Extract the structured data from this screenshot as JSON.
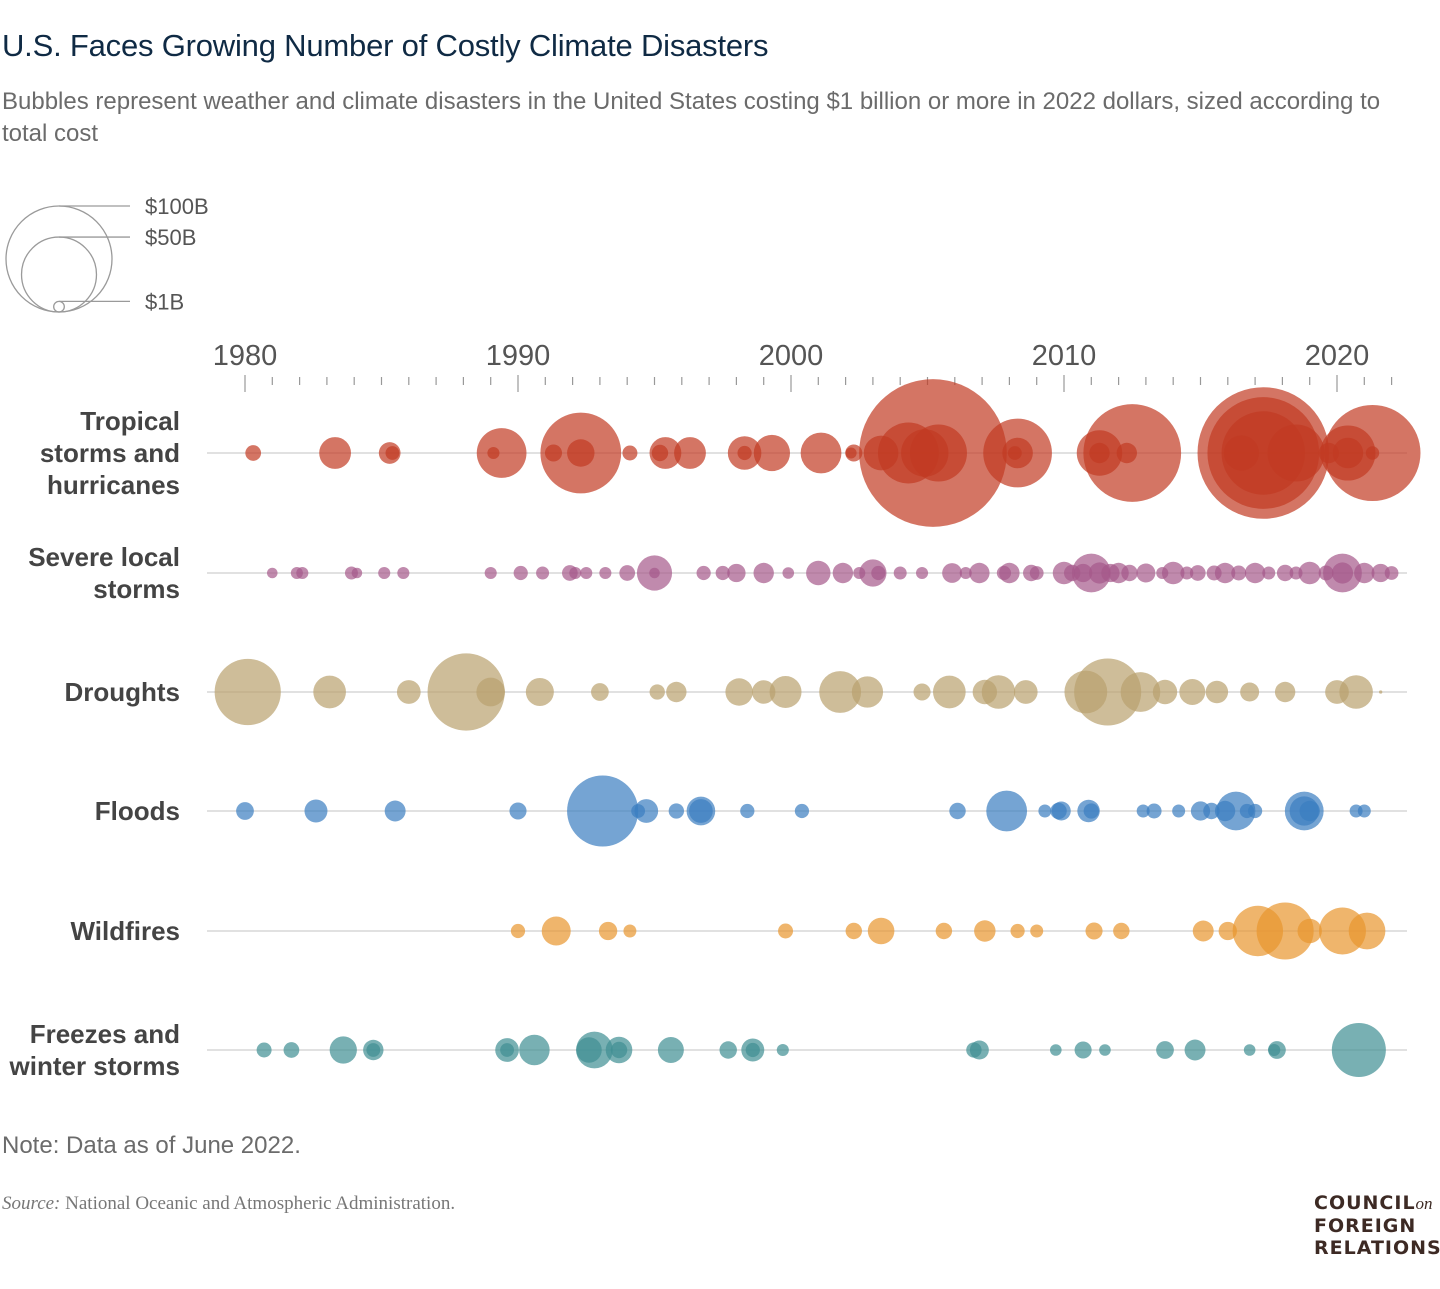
{
  "title": "U.S. Faces Growing Number of Costly Climate Disasters",
  "subtitle": "Bubbles represent weather and climate disasters in the United States costing $1 billion or more in 2022 dollars, sized according to total cost",
  "note": "Note: Data as of June 2022.",
  "source_label": "Source:",
  "source_text": " National Oceanic and Atmospheric Administration.",
  "logo": {
    "line1": "COUNCIL",
    "on": "on",
    "line2": "FOREIGN",
    "line3": "RELATIONS"
  },
  "chart_data": {
    "type": "scatter",
    "title": "U.S. Faces Growing Number of Costly Climate Disasters",
    "size_encoding": "total cost (billions of 2022 dollars)",
    "size_legend": [
      {
        "label": "$100B",
        "value": 100
      },
      {
        "label": "$50B",
        "value": 50
      },
      {
        "label": "$1B",
        "value": 1
      }
    ],
    "x_ticks": [
      "1980",
      "1990",
      "2000",
      "2010",
      "2020"
    ],
    "x_tick_values": [
      1980,
      1990,
      2000,
      2010,
      2020
    ],
    "xlim": [
      1980,
      2022
    ],
    "grid": true,
    "series": [
      {
        "name": "Tropical storms and hurricanes",
        "label_lines": [
          "Tropical",
          "storms and",
          "hurricanes"
        ],
        "color": "#c23b22",
        "points": [
          [
            1980.3,
            2.2
          ],
          [
            1983.3,
            9
          ],
          [
            1985.3,
            4.2
          ],
          [
            1985.4,
            1.7
          ],
          [
            1989.1,
            1.3
          ],
          [
            1989.4,
            22
          ],
          [
            1991.3,
            2.6
          ],
          [
            1992.3,
            58
          ],
          [
            1992.3,
            6.7
          ],
          [
            1994.1,
            2
          ],
          [
            1995.2,
            2.4
          ],
          [
            1995.4,
            9
          ],
          [
            1996.3,
            9
          ],
          [
            1998.3,
            1.8
          ],
          [
            1998.3,
            10
          ],
          [
            1999.3,
            11.7
          ],
          [
            2001.1,
            14.8
          ],
          [
            2002.2,
            1.1
          ],
          [
            2002.3,
            2.6
          ],
          [
            2003.3,
            10.7
          ],
          [
            2004.3,
            33
          ],
          [
            2004.9,
            20
          ],
          [
            2005.2,
            194
          ],
          [
            2005.4,
            29
          ],
          [
            2008.2,
            1.7
          ],
          [
            2008.3,
            8.3
          ],
          [
            2008.3,
            42
          ],
          [
            2011.3,
            18.4
          ],
          [
            2011.3,
            3.7
          ],
          [
            2012.3,
            3.7
          ],
          [
            2012.5,
            85
          ],
          [
            2016.5,
            11
          ],
          [
            2017.3,
            154
          ],
          [
            2017.3,
            111
          ],
          [
            2017.3,
            62
          ],
          [
            2018.5,
            29
          ],
          [
            2019.7,
            3.7
          ],
          [
            2020.4,
            27
          ],
          [
            2020.4,
            8.3
          ],
          [
            2021.3,
            82
          ],
          [
            2021.3,
            1.6
          ]
        ]
      },
      {
        "name": "Severe local storms",
        "label_lines": [
          "Severe local",
          "storms"
        ],
        "color": "#a5588a",
        "points": [
          [
            1981.0,
            1
          ],
          [
            1981.9,
            1.3
          ],
          [
            1982.1,
            1.3
          ],
          [
            1983.9,
            1.5
          ],
          [
            1984.1,
            1
          ],
          [
            1985.1,
            1.3
          ],
          [
            1985.8,
            1.3
          ],
          [
            1989.0,
            1.3
          ],
          [
            1990.1,
            1.8
          ],
          [
            1990.9,
            1.5
          ],
          [
            1991.9,
            2.2
          ],
          [
            1992.1,
            1.3
          ],
          [
            1992.5,
            1.3
          ],
          [
            1993.2,
            1.3
          ],
          [
            1994.0,
            2.2
          ],
          [
            1995.0,
            11
          ],
          [
            1995.0,
            1
          ],
          [
            1996.8,
            1.8
          ],
          [
            1997.5,
            1.8
          ],
          [
            1998.0,
            3
          ],
          [
            1999.0,
            3.7
          ],
          [
            1999.9,
            1.2
          ],
          [
            2001.0,
            5.3
          ],
          [
            2001.9,
            3.7
          ],
          [
            2002.5,
            1.3
          ],
          [
            2003.0,
            6.6
          ],
          [
            2003.2,
            1.8
          ],
          [
            2004.0,
            1.5
          ],
          [
            2004.8,
            1.3
          ],
          [
            2005.9,
            3.5
          ],
          [
            2006.4,
            1.3
          ],
          [
            2006.9,
            3.7
          ],
          [
            2007.8,
            1.8
          ],
          [
            2008.0,
            3.7
          ],
          [
            2008.8,
            2.4
          ],
          [
            2009.0,
            1.7
          ],
          [
            2010.0,
            4.5
          ],
          [
            2010.3,
            2.4
          ],
          [
            2010.7,
            3
          ],
          [
            2011.0,
            13.4
          ],
          [
            2011.3,
            4
          ],
          [
            2011.7,
            3
          ],
          [
            2012.0,
            3.7
          ],
          [
            2012.4,
            2.4
          ],
          [
            2013.0,
            3.2
          ],
          [
            2013.6,
            1.3
          ],
          [
            2014.0,
            4.5
          ],
          [
            2014.5,
            1.5
          ],
          [
            2014.9,
            2.2
          ],
          [
            2015.5,
            2
          ],
          [
            2015.9,
            3.7
          ],
          [
            2016.4,
            2
          ],
          [
            2017.0,
            3.7
          ],
          [
            2017.5,
            1.5
          ],
          [
            2018.1,
            2.4
          ],
          [
            2018.5,
            1.5
          ],
          [
            2019.0,
            4.5
          ],
          [
            2019.6,
            2
          ],
          [
            2020.2,
            13.4
          ],
          [
            2020.2,
            4
          ],
          [
            2021.0,
            3.7
          ],
          [
            2021.6,
            3
          ],
          [
            2022.0,
            1.7
          ]
        ]
      },
      {
        "name": "Droughts",
        "label_lines": [
          "Droughts"
        ],
        "color": "#b9a16e",
        "points": [
          [
            1980.1,
            39
          ],
          [
            1983.1,
            9.5
          ],
          [
            1986.0,
            5
          ],
          [
            1988.1,
            53
          ],
          [
            1989.0,
            7.3
          ],
          [
            1990.8,
            7
          ],
          [
            1993.0,
            2.8
          ],
          [
            1995.1,
            2.1
          ],
          [
            1995.8,
            3.7
          ],
          [
            1998.1,
            6.7
          ],
          [
            1999.0,
            4.9
          ],
          [
            1999.8,
            9.1
          ],
          [
            2001.8,
            15.6
          ],
          [
            2002.8,
            8.7
          ],
          [
            2004.8,
            2.6
          ],
          [
            2005.8,
            9.5
          ],
          [
            2007.1,
            5.3
          ],
          [
            2007.6,
            10
          ],
          [
            2008.6,
            5
          ],
          [
            2010.8,
            16.3
          ],
          [
            2011.6,
            40
          ],
          [
            2012.8,
            14
          ],
          [
            2013.7,
            5.3
          ],
          [
            2014.7,
            6
          ],
          [
            2015.6,
            4.5
          ],
          [
            2016.8,
            3.2
          ],
          [
            2018.1,
            3.7
          ],
          [
            2020.0,
            5
          ],
          [
            2020.7,
            10
          ],
          [
            2021.6,
            0.1
          ]
        ]
      },
      {
        "name": "Floods",
        "label_lines": [
          "Floods"
        ],
        "color": "#3a7dc0",
        "points": [
          [
            1980.0,
            2.8
          ],
          [
            1982.6,
            4.7
          ],
          [
            1985.5,
            3.9
          ],
          [
            1990.0,
            2.6
          ],
          [
            1993.1,
            45
          ],
          [
            1994.4,
            1.7
          ],
          [
            1994.7,
            5
          ],
          [
            1995.8,
            2.1
          ],
          [
            1996.7,
            7.3
          ],
          [
            1996.7,
            5
          ],
          [
            1998.4,
            1.8
          ],
          [
            2000.4,
            1.8
          ],
          [
            2006.1,
            2.4
          ],
          [
            2007.9,
            14.8
          ],
          [
            2009.3,
            1.5
          ],
          [
            2009.8,
            2.4
          ],
          [
            2009.9,
            3.2
          ],
          [
            2010.9,
            4.5
          ],
          [
            2011.0,
            2.1
          ],
          [
            2012.9,
            1.5
          ],
          [
            2013.3,
            2
          ],
          [
            2014.2,
            1.5
          ],
          [
            2015.0,
            3.3
          ],
          [
            2015.4,
            2.4
          ],
          [
            2015.9,
            3.7
          ],
          [
            2016.3,
            13.4
          ],
          [
            2016.7,
            1.8
          ],
          [
            2017.0,
            1.8
          ],
          [
            2018.8,
            13.4
          ],
          [
            2018.8,
            7.6
          ],
          [
            2019.0,
            3.7
          ],
          [
            2020.7,
            1.5
          ],
          [
            2021.0,
            1.5
          ]
        ]
      },
      {
        "name": "Wildfires",
        "label_lines": [
          "Wildfires"
        ],
        "color": "#e8962e",
        "points": [
          [
            1990.0,
            1.8
          ],
          [
            1991.4,
            7.5
          ],
          [
            1993.3,
            3
          ],
          [
            1994.1,
            1.5
          ],
          [
            1999.8,
            2
          ],
          [
            2002.3,
            2.4
          ],
          [
            2003.3,
            6.3
          ],
          [
            2005.6,
            2.4
          ],
          [
            2007.1,
            4.1
          ],
          [
            2008.3,
            1.8
          ],
          [
            2009.0,
            1.5
          ],
          [
            2011.1,
            2.6
          ],
          [
            2012.1,
            2.4
          ],
          [
            2015.1,
            3.9
          ],
          [
            2016.0,
            3
          ],
          [
            2017.1,
            22.6
          ],
          [
            2018.1,
            29
          ],
          [
            2019.0,
            5.3
          ],
          [
            2020.2,
            19.6
          ],
          [
            2021.1,
            12
          ]
        ]
      },
      {
        "name": "Freezes and winter storms",
        "label_lines": [
          "Freezes and",
          "winter storms"
        ],
        "color": "#3f8f93",
        "points": [
          [
            1980.7,
            2
          ],
          [
            1981.7,
            2.2
          ],
          [
            1983.6,
            6.6
          ],
          [
            1984.7,
            3.7
          ],
          [
            1984.7,
            1.7
          ],
          [
            1989.6,
            5
          ],
          [
            1989.6,
            1.7
          ],
          [
            1990.6,
            8.3
          ],
          [
            1992.6,
            5.8
          ],
          [
            1992.8,
            12
          ],
          [
            1993.7,
            6.3
          ],
          [
            1993.7,
            2.4
          ],
          [
            1995.6,
            6
          ],
          [
            1997.7,
            2.7
          ],
          [
            1998.6,
            4.7
          ],
          [
            1998.6,
            1.8
          ],
          [
            1999.7,
            1.3
          ],
          [
            2006.7,
            2.1
          ],
          [
            2006.9,
            3.2
          ],
          [
            2009.7,
            1.2
          ],
          [
            2010.7,
            2.6
          ],
          [
            2011.5,
            1.2
          ],
          [
            2013.7,
            2.8
          ],
          [
            2014.8,
            3.9
          ],
          [
            2016.8,
            1.2
          ],
          [
            2017.7,
            1.3
          ],
          [
            2017.8,
            2.8
          ],
          [
            2020.8,
            26
          ]
        ]
      }
    ]
  }
}
